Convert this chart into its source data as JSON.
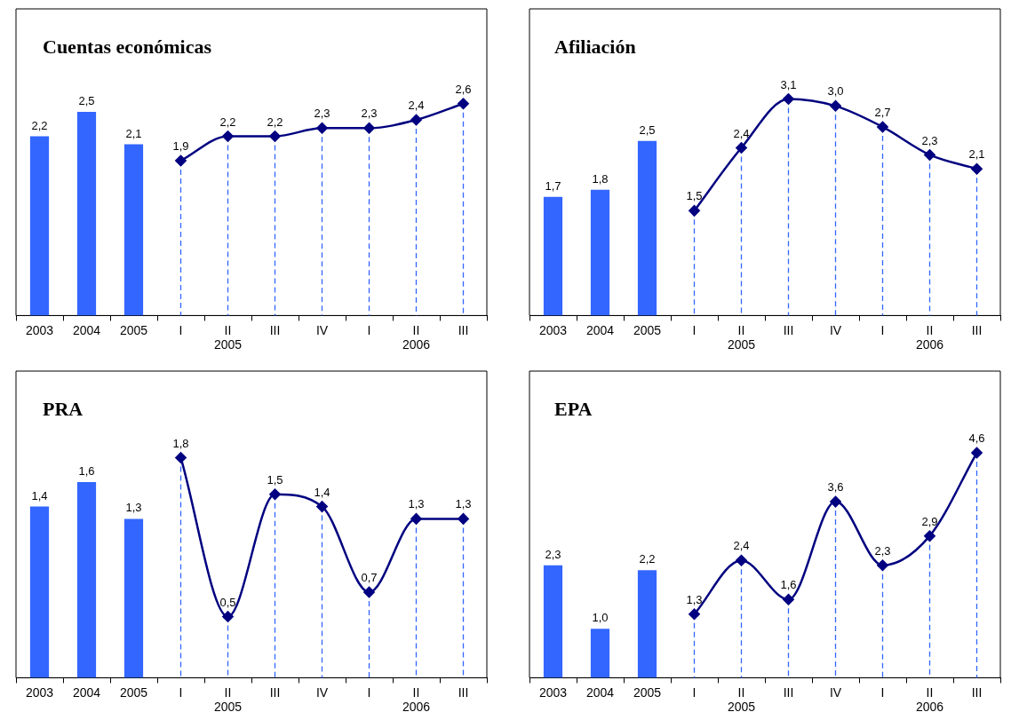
{
  "chart_data": [
    {
      "type": "bar",
      "title": "Cuentas económicas",
      "categories": [
        "2003",
        "2004",
        "2005",
        "I",
        "II\n2005",
        "III",
        "IV",
        "I",
        "II\n2006",
        "III"
      ],
      "series": [
        {
          "type": "bar",
          "color": "#3366ff",
          "values": [
            2.2,
            2.5,
            2.1,
            null,
            null,
            null,
            null,
            null,
            null,
            null
          ],
          "value_labels": [
            "2,2",
            "2,5",
            "2,1",
            null,
            null,
            null,
            null,
            null,
            null,
            null
          ]
        },
        {
          "type": "line",
          "color": "#000080",
          "values": [
            null,
            null,
            null,
            1.9,
            2.2,
            2.2,
            2.3,
            2.3,
            2.4,
            2.6
          ],
          "value_labels": [
            null,
            null,
            null,
            "1,9",
            "2,2",
            "2,2",
            "2,3",
            "2,3",
            "2,4",
            "2,6"
          ]
        }
      ],
      "tick_labels": "x",
      "marker": "diamond",
      "grid": "x"
    },
    {
      "type": "bar",
      "title": "Afiliación",
      "categories": [
        "2003",
        "2004",
        "2005",
        "I",
        "II\n2005",
        "III",
        "IV",
        "I",
        "II\n2006",
        "III"
      ],
      "series": [
        {
          "type": "bar",
          "color": "#3366ff",
          "values": [
            1.7,
            1.8,
            2.5,
            null,
            null,
            null,
            null,
            null,
            null,
            null
          ],
          "value_labels": [
            "1,7",
            "1,8",
            "2,5",
            null,
            null,
            null,
            null,
            null,
            null,
            null
          ]
        },
        {
          "type": "line",
          "color": "#000080",
          "values": [
            null,
            null,
            null,
            1.5,
            2.4,
            3.1,
            3.0,
            2.7,
            2.3,
            2.1
          ],
          "value_labels": [
            null,
            null,
            null,
            "1,5",
            "2,4",
            "3,1",
            "3,0",
            "2,7",
            "2,3",
            "2,1"
          ]
        }
      ],
      "tick_labels": "x",
      "marker": "diamond",
      "grid": "x"
    },
    {
      "type": "bar",
      "title": "PRA",
      "categories": [
        "2003",
        "2004",
        "2005",
        "I",
        "II\n2005",
        "III",
        "IV",
        "I",
        "II\n2006",
        "III"
      ],
      "series": [
        {
          "type": "bar",
          "color": "#3366ff",
          "values": [
            1.4,
            1.6,
            1.3,
            null,
            null,
            null,
            null,
            null,
            null,
            null
          ],
          "value_labels": [
            "1,4",
            "1,6",
            "1,3",
            null,
            null,
            null,
            null,
            null,
            null,
            null
          ]
        },
        {
          "type": "line",
          "color": "#000080",
          "values": [
            null,
            null,
            null,
            1.8,
            0.5,
            1.5,
            1.4,
            0.7,
            1.3,
            1.3
          ],
          "value_labels": [
            null,
            null,
            null,
            "1,8",
            "0,5",
            "1,5",
            "1,4",
            "0,7",
            "1,3",
            "1,3"
          ]
        }
      ],
      "tick_labels": "x",
      "marker": "diamond",
      "grid": "x"
    },
    {
      "type": "bar",
      "title": "EPA",
      "categories": [
        "2003",
        "2004",
        "2005",
        "I",
        "II\n2005",
        "III",
        "IV",
        "I",
        "II\n2006",
        "III"
      ],
      "series": [
        {
          "type": "bar",
          "color": "#3366ff",
          "values": [
            2.3,
            1.0,
            2.2,
            null,
            null,
            null,
            null,
            null,
            null,
            null
          ],
          "value_labels": [
            "2,3",
            "1,0",
            "2,2",
            null,
            null,
            null,
            null,
            null,
            null,
            null
          ]
        },
        {
          "type": "line",
          "color": "#000080",
          "values": [
            null,
            null,
            null,
            1.3,
            2.4,
            1.6,
            3.6,
            2.3,
            2.9,
            4.6
          ],
          "value_labels": [
            null,
            null,
            null,
            "1,3",
            "2,4",
            "1,6",
            "3,6",
            "2,3",
            "2,9",
            "4,6"
          ]
        }
      ],
      "tick_labels": "x",
      "marker": "diamond",
      "grid": "x"
    }
  ]
}
